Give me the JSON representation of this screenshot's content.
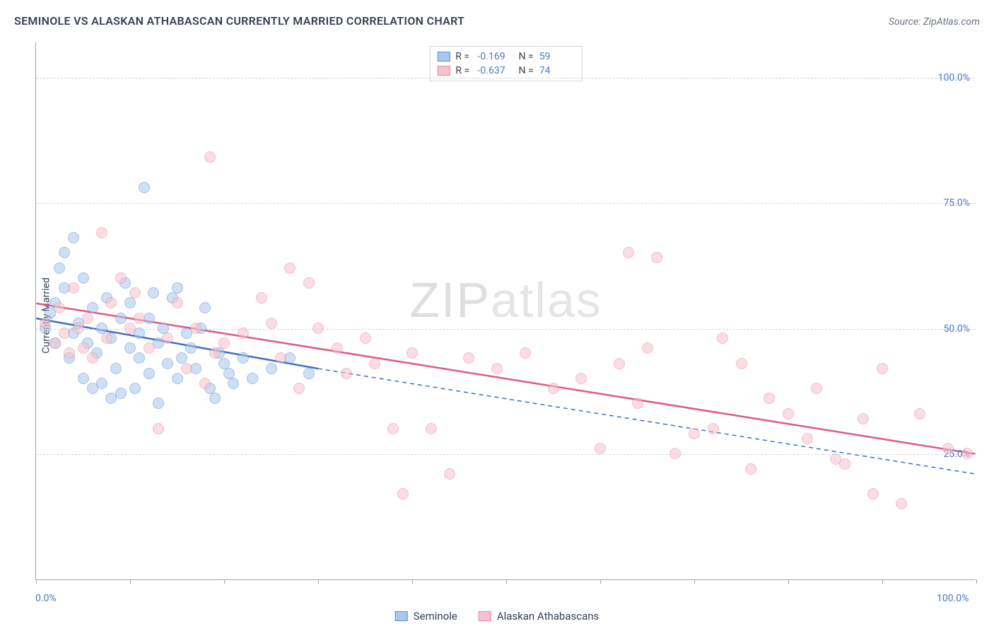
{
  "title": "SEMINOLE VS ALASKAN ATHABASCAN CURRENTLY MARRIED CORRELATION CHART",
  "source": "Source: ZipAtlas.com",
  "watermark": "ZIPatlas",
  "y_axis_label": "Currently Married",
  "chart": {
    "type": "scatter",
    "xlim": [
      0,
      100
    ],
    "ylim": [
      0,
      107
    ],
    "y_ticks": [
      25,
      50,
      75,
      100
    ],
    "y_tick_labels": [
      "25.0%",
      "50.0%",
      "75.0%",
      "100.0%"
    ],
    "x_ticks": [
      0,
      10,
      20,
      30,
      40,
      50,
      60,
      70,
      80,
      90,
      100
    ],
    "x_tick_labels_shown": [
      {
        "pos": 0,
        "label": "0.0%"
      },
      {
        "pos": 100,
        "label": "100.0%"
      }
    ],
    "grid_color": "#d1d5db",
    "axis_color": "#9ca3af",
    "background_color": "#ffffff",
    "point_radius": 8,
    "point_opacity": 0.55,
    "series": [
      {
        "name": "Seminole",
        "fill": "#a8c8ec",
        "stroke": "#5b8fd6",
        "trend_color": "#3b6fc4",
        "trend_width": 2.5,
        "trend": {
          "x1": 0,
          "y1": 52,
          "x2_solid": 30,
          "y2_solid": 42,
          "x2_dash": 100,
          "y2_dash": 21
        },
        "R": "-0.169",
        "N": "59",
        "points": [
          [
            1,
            50
          ],
          [
            1.5,
            53
          ],
          [
            2,
            47
          ],
          [
            2,
            55
          ],
          [
            2.5,
            62
          ],
          [
            3,
            65
          ],
          [
            3,
            58
          ],
          [
            3.5,
            44
          ],
          [
            4,
            49
          ],
          [
            4,
            68
          ],
          [
            4.5,
            51
          ],
          [
            5,
            60
          ],
          [
            5,
            40
          ],
          [
            5.5,
            47
          ],
          [
            6,
            54
          ],
          [
            6,
            38
          ],
          [
            6.5,
            45
          ],
          [
            7,
            39
          ],
          [
            7,
            50
          ],
          [
            7.5,
            56
          ],
          [
            8,
            36
          ],
          [
            8,
            48
          ],
          [
            8.5,
            42
          ],
          [
            9,
            52
          ],
          [
            9,
            37
          ],
          [
            9.5,
            59
          ],
          [
            10,
            55
          ],
          [
            10,
            46
          ],
          [
            10.5,
            38
          ],
          [
            11,
            44
          ],
          [
            11,
            49
          ],
          [
            11.5,
            78
          ],
          [
            12,
            41
          ],
          [
            12,
            52
          ],
          [
            12.5,
            57
          ],
          [
            13,
            47
          ],
          [
            13,
            35
          ],
          [
            13.5,
            50
          ],
          [
            14,
            43
          ],
          [
            14.5,
            56
          ],
          [
            15,
            58
          ],
          [
            15,
            40
          ],
          [
            15.5,
            44
          ],
          [
            16,
            49
          ],
          [
            16.5,
            46
          ],
          [
            17,
            42
          ],
          [
            17.5,
            50
          ],
          [
            18,
            54
          ],
          [
            18.5,
            38
          ],
          [
            19,
            36
          ],
          [
            19.5,
            45
          ],
          [
            20,
            43
          ],
          [
            20.5,
            41
          ],
          [
            21,
            39
          ],
          [
            22,
            44
          ],
          [
            23,
            40
          ],
          [
            25,
            42
          ],
          [
            27,
            44
          ],
          [
            29,
            41
          ]
        ]
      },
      {
        "name": "Alaskan Athabascans",
        "fill": "#f6c2cd",
        "stroke": "#e88aa0",
        "trend_color": "#e05a7e",
        "trend_width": 2.5,
        "trend": {
          "x1": 0,
          "y1": 55,
          "x2_solid": 100,
          "y2_solid": 25,
          "x2_dash": 100,
          "y2_dash": 25
        },
        "R": "-0.637",
        "N": "74",
        "points": [
          [
            1,
            51
          ],
          [
            2,
            47
          ],
          [
            2.5,
            54
          ],
          [
            3,
            49
          ],
          [
            3.5,
            45
          ],
          [
            4,
            58
          ],
          [
            4.5,
            50
          ],
          [
            5,
            46
          ],
          [
            5.5,
            52
          ],
          [
            6,
            44
          ],
          [
            7,
            69
          ],
          [
            7.5,
            48
          ],
          [
            8,
            55
          ],
          [
            9,
            60
          ],
          [
            10,
            50
          ],
          [
            10.5,
            57
          ],
          [
            11,
            52
          ],
          [
            12,
            46
          ],
          [
            13,
            30
          ],
          [
            14,
            48
          ],
          [
            15,
            55
          ],
          [
            16,
            42
          ],
          [
            17,
            50
          ],
          [
            18,
            39
          ],
          [
            18.5,
            84
          ],
          [
            19,
            45
          ],
          [
            20,
            47
          ],
          [
            22,
            49
          ],
          [
            24,
            56
          ],
          [
            25,
            51
          ],
          [
            26,
            44
          ],
          [
            27,
            62
          ],
          [
            28,
            38
          ],
          [
            29,
            59
          ],
          [
            30,
            50
          ],
          [
            32,
            46
          ],
          [
            33,
            41
          ],
          [
            35,
            48
          ],
          [
            36,
            43
          ],
          [
            38,
            30
          ],
          [
            39,
            17
          ],
          [
            40,
            45
          ],
          [
            42,
            30
          ],
          [
            44,
            21
          ],
          [
            46,
            44
          ],
          [
            49,
            42
          ],
          [
            52,
            45
          ],
          [
            55,
            38
          ],
          [
            58,
            40
          ],
          [
            60,
            26
          ],
          [
            62,
            43
          ],
          [
            63,
            65
          ],
          [
            64,
            35
          ],
          [
            65,
            46
          ],
          [
            66,
            64
          ],
          [
            68,
            25
          ],
          [
            70,
            29
          ],
          [
            72,
            30
          ],
          [
            73,
            48
          ],
          [
            75,
            43
          ],
          [
            76,
            22
          ],
          [
            78,
            36
          ],
          [
            80,
            33
          ],
          [
            82,
            28
          ],
          [
            83,
            38
          ],
          [
            85,
            24
          ],
          [
            86,
            23
          ],
          [
            88,
            32
          ],
          [
            89,
            17
          ],
          [
            90,
            42
          ],
          [
            92,
            15
          ],
          [
            94,
            33
          ],
          [
            97,
            26
          ],
          [
            99,
            25
          ]
        ]
      }
    ]
  },
  "legend_bottom": [
    {
      "label": "Seminole",
      "fill": "#a8c8ec",
      "stroke": "#5b8fd6"
    },
    {
      "label": "Alaskan Athabascans",
      "fill": "#f6c2cd",
      "stroke": "#e88aa0"
    }
  ]
}
